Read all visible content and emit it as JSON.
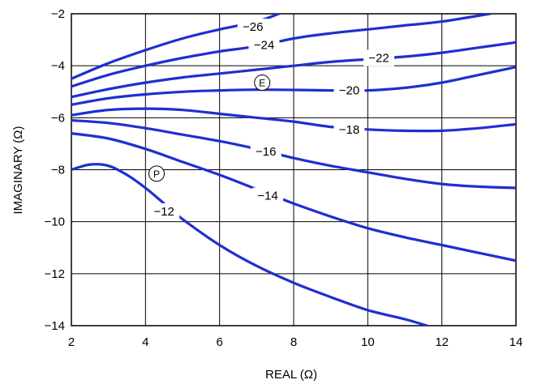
{
  "chart_data": {
    "type": "line",
    "title": "",
    "xlabel": "REAL (Ω)",
    "ylabel": "IMAGINARY (Ω)",
    "xlim": [
      2,
      14
    ],
    "ylim": [
      -14,
      -2
    ],
    "grid": true,
    "x_ticks": [
      2,
      4,
      6,
      8,
      10,
      12,
      14
    ],
    "x_tick_labels": [
      "2",
      "4",
      "6",
      "8",
      "10",
      "12",
      "14"
    ],
    "y_ticks": [
      -2,
      -4,
      -6,
      -8,
      -10,
      -12,
      -14
    ],
    "y_tick_labels": [
      "−2",
      "−4",
      "−6",
      "−8",
      "−10",
      "−12",
      "−14"
    ],
    "line_color": "#1f2fd0",
    "series": [
      {
        "label": "−26",
        "label_at": [
          6.9,
          -2.5
        ],
        "points": [
          [
            2.0,
            -4.5
          ],
          [
            3.0,
            -3.9
          ],
          [
            4.0,
            -3.4
          ],
          [
            5.0,
            -2.95
          ],
          [
            6.0,
            -2.6
          ],
          [
            7.0,
            -2.3
          ],
          [
            7.6,
            -2.0
          ]
        ]
      },
      {
        "label": "−24",
        "label_at": [
          7.2,
          -3.2
        ],
        "points": [
          [
            2.0,
            -4.8
          ],
          [
            3.0,
            -4.35
          ],
          [
            4.0,
            -4.0
          ],
          [
            5.0,
            -3.7
          ],
          [
            6.0,
            -3.45
          ],
          [
            7.0,
            -3.25
          ],
          [
            8.0,
            -2.95
          ],
          [
            9.0,
            -2.75
          ],
          [
            10.0,
            -2.6
          ],
          [
            11.0,
            -2.45
          ],
          [
            12.0,
            -2.3
          ],
          [
            13.3,
            -2.0
          ]
        ]
      },
      {
        "label": "−22",
        "label_at": [
          10.3,
          -3.7
        ],
        "points": [
          [
            2.0,
            -5.2
          ],
          [
            3.0,
            -4.9
          ],
          [
            4.0,
            -4.65
          ],
          [
            5.0,
            -4.45
          ],
          [
            6.0,
            -4.3
          ],
          [
            7.0,
            -4.15
          ],
          [
            8.0,
            -4.0
          ],
          [
            9.0,
            -3.85
          ],
          [
            10.0,
            -3.75
          ],
          [
            11.0,
            -3.65
          ],
          [
            12.0,
            -3.5
          ],
          [
            13.0,
            -3.3
          ],
          [
            14.0,
            -3.1
          ]
        ]
      },
      {
        "label": "−20",
        "label_at": [
          9.5,
          -4.95
        ],
        "points": [
          [
            2.0,
            -5.5
          ],
          [
            3.0,
            -5.25
          ],
          [
            4.0,
            -5.1
          ],
          [
            5.0,
            -5.0
          ],
          [
            6.0,
            -4.95
          ],
          [
            7.0,
            -4.92
          ],
          [
            8.0,
            -4.93
          ],
          [
            9.0,
            -4.95
          ],
          [
            10.0,
            -4.95
          ],
          [
            11.0,
            -4.85
          ],
          [
            12.0,
            -4.65
          ],
          [
            13.0,
            -4.35
          ],
          [
            14.0,
            -4.05
          ]
        ]
      },
      {
        "label": "−18",
        "label_at": [
          9.5,
          -6.45
        ],
        "points": [
          [
            2.0,
            -5.9
          ],
          [
            3.0,
            -5.7
          ],
          [
            4.0,
            -5.65
          ],
          [
            5.0,
            -5.7
          ],
          [
            6.0,
            -5.85
          ],
          [
            7.0,
            -6.0
          ],
          [
            8.0,
            -6.15
          ],
          [
            9.0,
            -6.35
          ],
          [
            10.0,
            -6.45
          ],
          [
            11.0,
            -6.5
          ],
          [
            12.0,
            -6.5
          ],
          [
            13.0,
            -6.4
          ],
          [
            14.0,
            -6.25
          ]
        ]
      },
      {
        "label": "−16",
        "label_at": [
          7.25,
          -7.3
        ],
        "points": [
          [
            2.0,
            -6.1
          ],
          [
            3.0,
            -6.2
          ],
          [
            4.0,
            -6.4
          ],
          [
            5.0,
            -6.65
          ],
          [
            6.0,
            -6.9
          ],
          [
            7.0,
            -7.2
          ],
          [
            8.0,
            -7.55
          ],
          [
            9.0,
            -7.85
          ],
          [
            10.0,
            -8.1
          ],
          [
            11.0,
            -8.35
          ],
          [
            12.0,
            -8.55
          ],
          [
            13.0,
            -8.65
          ],
          [
            14.0,
            -8.7
          ]
        ]
      },
      {
        "label": "−14",
        "label_at": [
          7.3,
          -9.0
        ],
        "points": [
          [
            2.0,
            -6.6
          ],
          [
            3.0,
            -6.8
          ],
          [
            4.0,
            -7.2
          ],
          [
            5.0,
            -7.7
          ],
          [
            6.0,
            -8.2
          ],
          [
            7.0,
            -8.75
          ],
          [
            8.0,
            -9.3
          ],
          [
            9.0,
            -9.8
          ],
          [
            10.0,
            -10.25
          ],
          [
            11.0,
            -10.6
          ],
          [
            12.0,
            -10.9
          ],
          [
            13.0,
            -11.2
          ],
          [
            14.0,
            -11.5
          ]
        ]
      },
      {
        "label": "−12",
        "label_at": [
          4.5,
          -9.6
        ],
        "points": [
          [
            2.0,
            -8.0
          ],
          [
            2.5,
            -7.8
          ],
          [
            3.0,
            -7.85
          ],
          [
            3.5,
            -8.2
          ],
          [
            4.0,
            -8.7
          ],
          [
            4.5,
            -9.3
          ],
          [
            5.0,
            -9.9
          ],
          [
            6.0,
            -10.9
          ],
          [
            7.0,
            -11.7
          ],
          [
            8.0,
            -12.35
          ],
          [
            9.0,
            -12.9
          ],
          [
            10.0,
            -13.4
          ],
          [
            11.0,
            -13.75
          ],
          [
            11.6,
            -14.0
          ]
        ]
      }
    ],
    "markers": [
      {
        "label": "E",
        "x": 7.15,
        "y": -4.65
      },
      {
        "label": "P",
        "x": 4.3,
        "y": -8.15
      }
    ]
  }
}
